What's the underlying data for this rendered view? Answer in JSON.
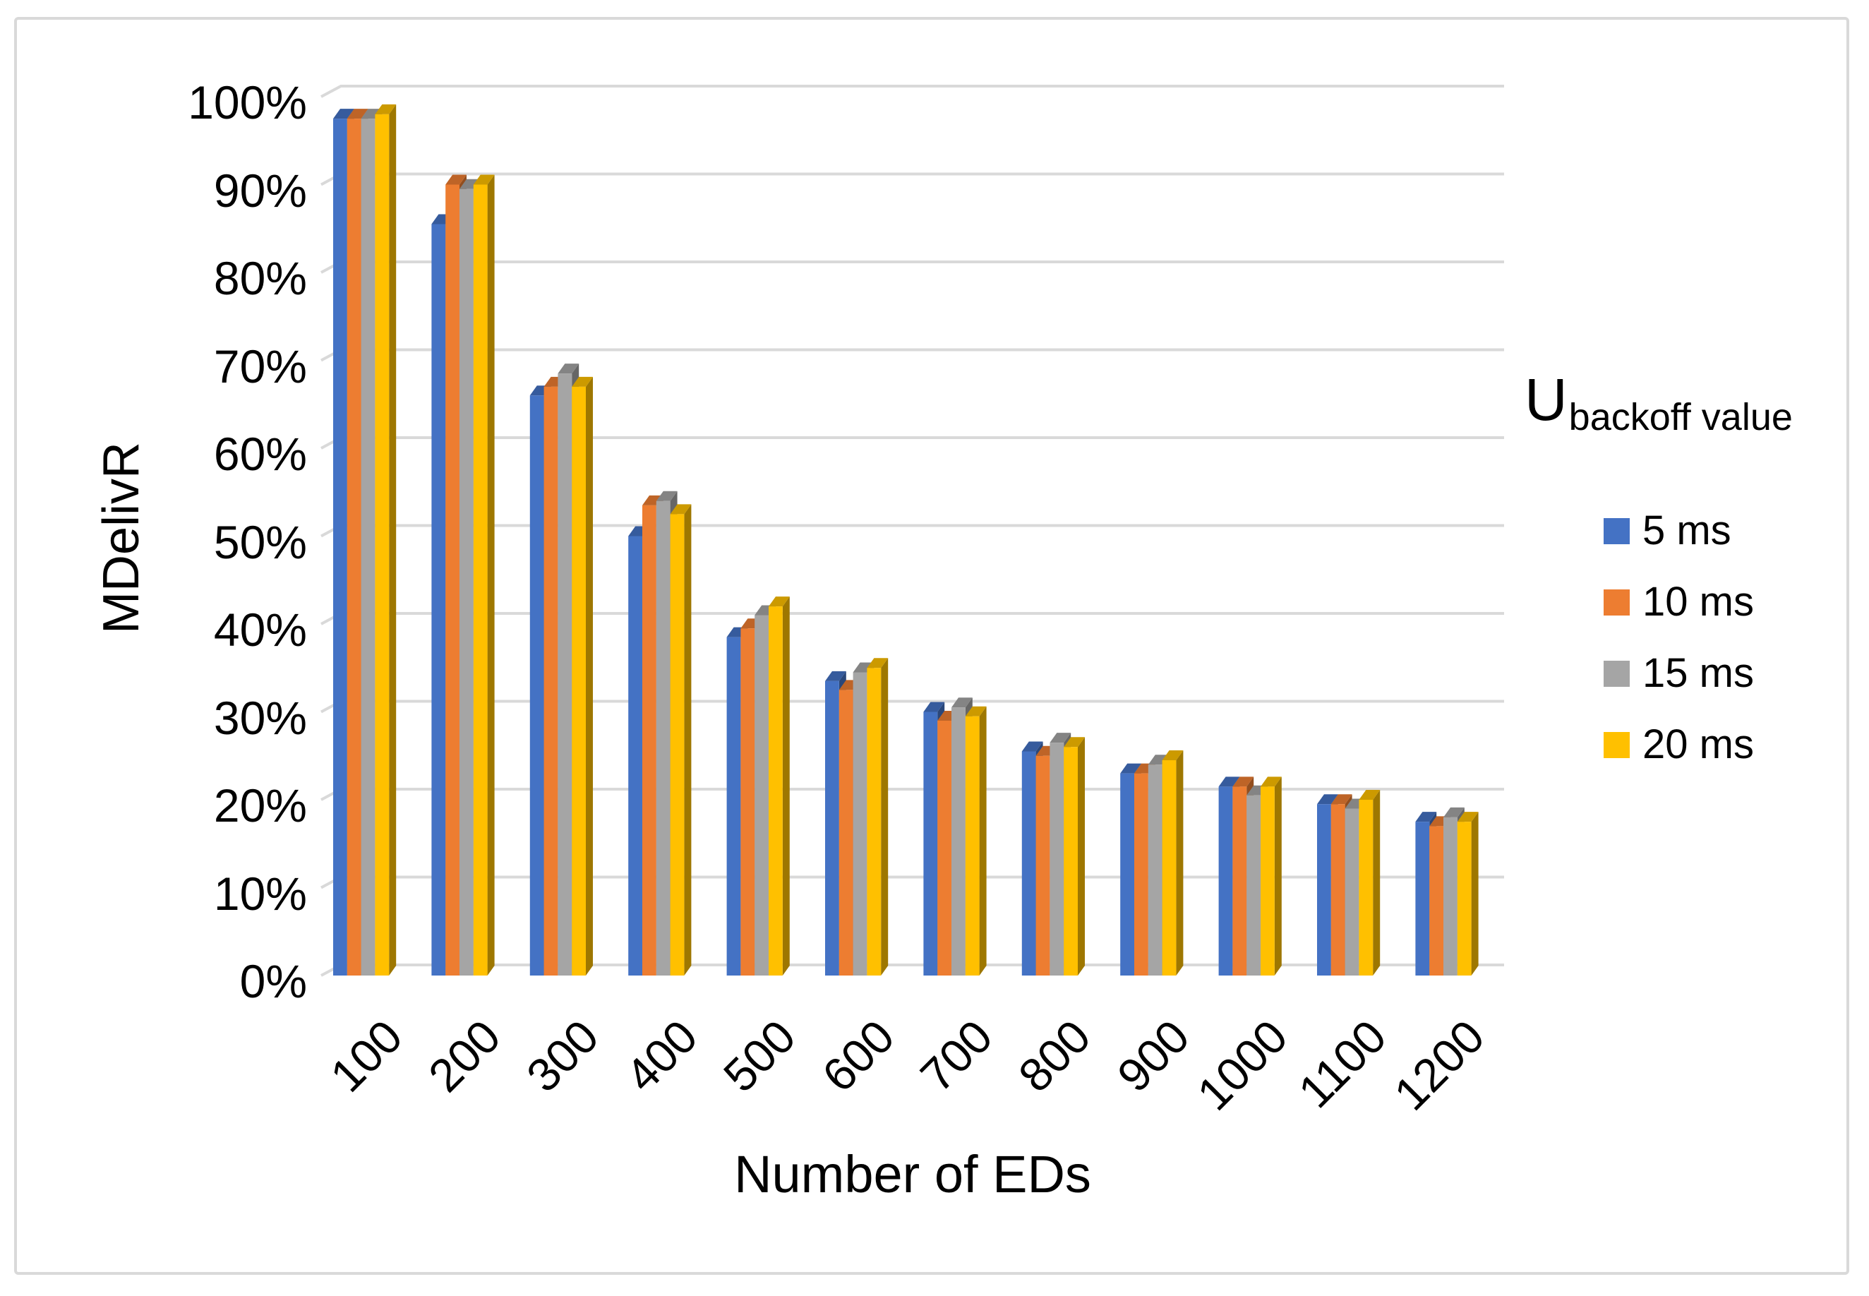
{
  "figure": {
    "background": "#ffffff",
    "border_color": "#d9d9d9"
  },
  "chart_data": {
    "type": "bar",
    "style": "3d-clustered-column",
    "title": "",
    "xlabel": "Number of EDs",
    "ylabel": "MDelivR",
    "categories": [
      "100",
      "200",
      "300",
      "400",
      "500",
      "600",
      "700",
      "800",
      "900",
      "1000",
      "1100",
      "1200"
    ],
    "series": [
      {
        "name": "5 ms",
        "color": "#4472C4",
        "values": [
          97.5,
          85.5,
          66,
          50,
          38.5,
          33.5,
          30,
          25.5,
          23,
          21.5,
          19.5,
          17.5
        ]
      },
      {
        "name": "10 ms",
        "color": "#ED7D31",
        "values": [
          97.5,
          90,
          67,
          53.5,
          39.5,
          32.5,
          29,
          25,
          23,
          21.5,
          19.5,
          17
        ]
      },
      {
        "name": "15 ms",
        "color": "#A5A5A5",
        "values": [
          97.5,
          89.5,
          68.5,
          54,
          41,
          34.5,
          30.5,
          26.5,
          24,
          20.5,
          19,
          18
        ]
      },
      {
        "name": "20 ms",
        "color": "#FFC000",
        "values": [
          98,
          90,
          67,
          52.5,
          42,
          35,
          29.5,
          26,
          24.5,
          21.5,
          20,
          17.5
        ]
      }
    ],
    "y_ticks": [
      "0%",
      "10%",
      "20%",
      "30%",
      "40%",
      "50%",
      "60%",
      "70%",
      "80%",
      "90%",
      "100%"
    ],
    "ylim": [
      0,
      100
    ],
    "y_tick_step": 10,
    "y_tick_format": "percent",
    "gridlines": true,
    "gridline_color": "#d9d9d9",
    "legend": {
      "position": "right",
      "title_main": "U",
      "title_subscript": "backoff value",
      "entries": [
        "5 ms",
        "10 ms",
        "15 ms",
        "20 ms"
      ]
    }
  }
}
